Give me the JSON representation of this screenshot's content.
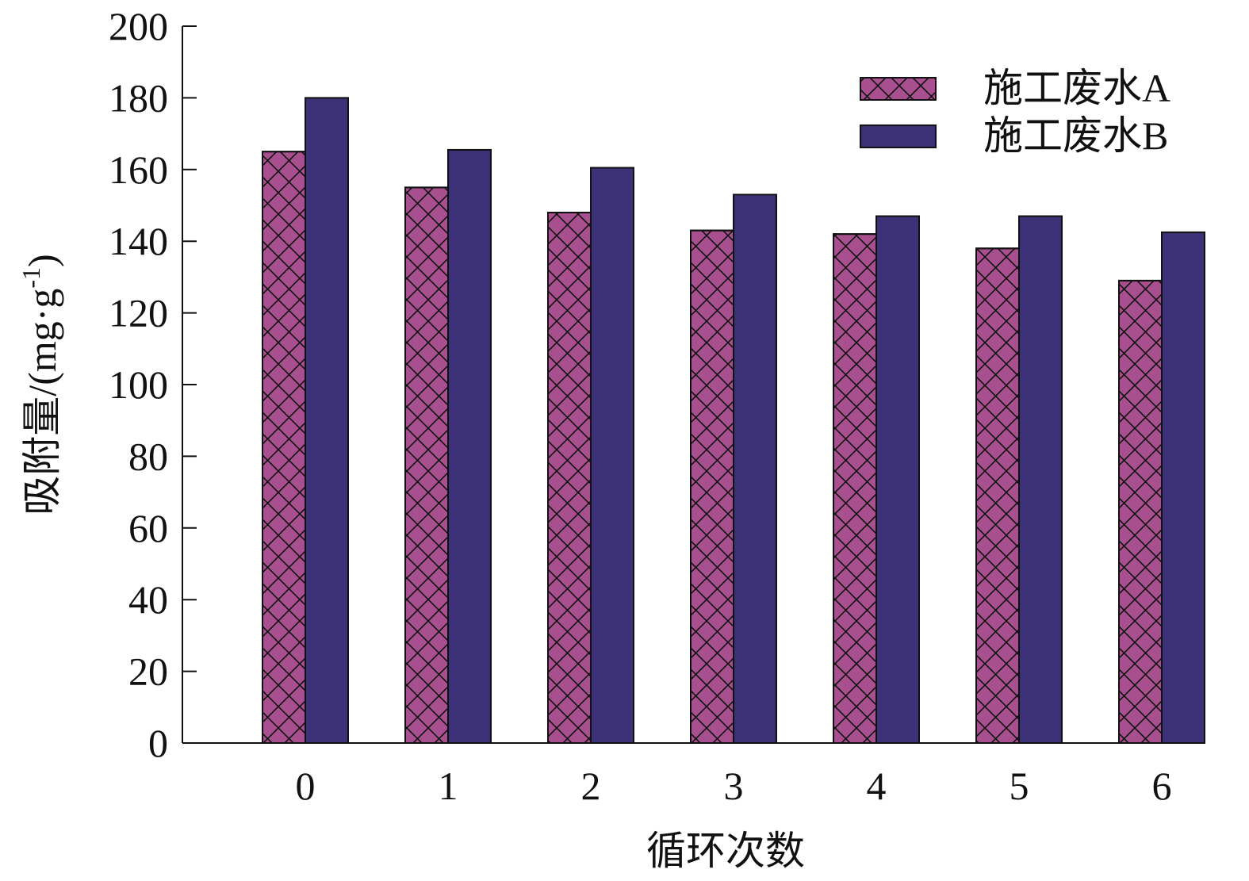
{
  "chart_data": {
    "type": "bar",
    "xlabel": "循环次数",
    "ylabel": {
      "text": "吸附量/(mg·g",
      "sup": "-1",
      "close": ")"
    },
    "categories": [
      "0",
      "1",
      "2",
      "3",
      "4",
      "5",
      "6"
    ],
    "series": [
      {
        "name": "施工废水A",
        "color": "#a8508f",
        "hatch": "crosshatch",
        "values": [
          165,
          155,
          148,
          143,
          142,
          138,
          129
        ]
      },
      {
        "name": "施工废水B",
        "color": "#3c3176",
        "hatch": "none",
        "values": [
          180,
          165.5,
          160.5,
          153,
          147,
          147,
          142.5
        ]
      }
    ],
    "ylim": [
      0,
      200
    ],
    "yticks": [
      0,
      20,
      40,
      60,
      80,
      100,
      120,
      140,
      160,
      180,
      200
    ],
    "grid": false,
    "legend": "upper right"
  }
}
